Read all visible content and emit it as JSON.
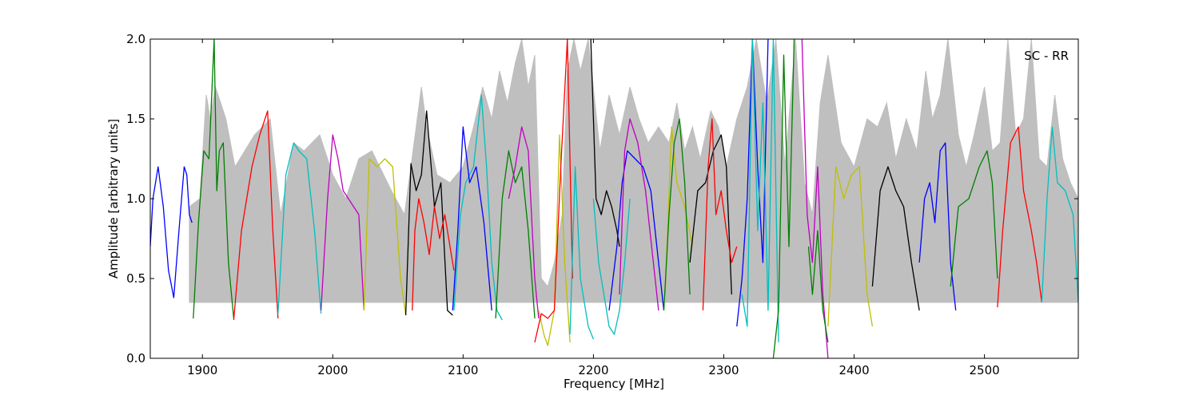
{
  "chart_data": {
    "type": "line",
    "title": "",
    "annotation": "SC - RR",
    "xlabel": "Frequency [MHz]",
    "ylabel": "Amplitude [arbitrary units]",
    "xlim": [
      1860,
      2572
    ],
    "ylim": [
      0.0,
      2.0
    ],
    "xticks": [
      1900,
      2000,
      2100,
      2200,
      2300,
      2400,
      2500
    ],
    "yticks": [
      0.0,
      0.5,
      1.0,
      1.5,
      2.0
    ],
    "xtick_labels": [
      "1900",
      "2000",
      "2100",
      "2200",
      "2300",
      "2400",
      "2500"
    ],
    "ytick_labels": [
      "0.0",
      "0.5",
      "1.0",
      "1.5",
      "2.0"
    ],
    "grid": false,
    "colors": {
      "envelope": "#bfbfbf",
      "blue": "#0000ff",
      "green": "#007f00",
      "red": "#ff0000",
      "cyan": "#00bfbf",
      "magenta": "#bf00bf",
      "yellow": "#bfbf00",
      "black": "#000000"
    },
    "envelope": {
      "x": [
        1890,
        1898,
        1903,
        1906,
        1910,
        1914,
        1918,
        1925,
        1940,
        1952,
        1960,
        1970,
        1978,
        1990,
        2000,
        2010,
        2020,
        2030,
        2045,
        2055,
        2060,
        2068,
        2072,
        2080,
        2090,
        2100,
        2108,
        2115,
        2122,
        2128,
        2134,
        2140,
        2145,
        2150,
        2155,
        2160,
        2165,
        2170,
        2176,
        2180,
        2185,
        2190,
        2196,
        2205,
        2212,
        2220,
        2228,
        2235,
        2242,
        2250,
        2258,
        2264,
        2270,
        2276,
        2282,
        2290,
        2296,
        2302,
        2310,
        2318,
        2325,
        2333,
        2340,
        2347,
        2355,
        2362,
        2368,
        2374,
        2380,
        2390,
        2400,
        2410,
        2418,
        2425,
        2432,
        2440,
        2448,
        2455,
        2460,
        2466,
        2472,
        2480,
        2486,
        2492,
        2500,
        2506,
        2512,
        2518,
        2524,
        2530,
        2536,
        2542,
        2548,
        2554,
        2560,
        2566,
        2572
      ],
      "y": [
        0.95,
        1.0,
        1.65,
        1.5,
        1.7,
        1.6,
        1.5,
        1.2,
        1.4,
        1.5,
        0.9,
        1.35,
        1.3,
        1.4,
        1.15,
        1.0,
        1.25,
        1.3,
        1.05,
        0.9,
        1.2,
        1.7,
        1.45,
        1.15,
        1.1,
        1.2,
        1.45,
        1.7,
        1.5,
        1.8,
        1.6,
        1.85,
        2.0,
        1.7,
        1.9,
        0.5,
        0.45,
        0.6,
        0.9,
        1.8,
        2.0,
        1.8,
        2.0,
        1.3,
        1.65,
        1.4,
        1.7,
        1.5,
        1.35,
        1.45,
        1.35,
        1.6,
        1.3,
        1.45,
        1.25,
        1.55,
        1.45,
        1.2,
        1.5,
        1.7,
        2.0,
        1.6,
        2.0,
        1.2,
        2.0,
        1.1,
        0.9,
        1.6,
        1.9,
        1.35,
        1.2,
        1.5,
        1.45,
        1.6,
        1.25,
        1.5,
        1.3,
        1.8,
        1.5,
        1.65,
        2.0,
        1.4,
        1.2,
        1.4,
        1.7,
        1.3,
        1.35,
        2.0,
        1.4,
        1.5,
        2.0,
        1.25,
        1.2,
        1.65,
        1.25,
        1.1,
        1.0
      ]
    },
    "series": [
      {
        "color": "blue",
        "x": [
          1860,
          1862,
          1866,
          1870,
          1874,
          1878,
          1882,
          1886,
          1888,
          1890,
          1892
        ],
        "y": [
          0.7,
          1.0,
          1.2,
          0.95,
          0.55,
          0.38,
          0.8,
          1.2,
          1.15,
          0.9,
          0.85
        ]
      },
      {
        "color": "green",
        "x": [
          1893,
          1897,
          1901,
          1905,
          1909,
          1911,
          1913,
          1916,
          1920,
          1924
        ],
        "y": [
          0.25,
          0.85,
          1.3,
          1.25,
          2.0,
          1.05,
          1.3,
          1.35,
          0.6,
          0.25
        ]
      },
      {
        "color": "red",
        "x": [
          1924,
          1930,
          1938,
          1944,
          1950,
          1954,
          1958
        ],
        "y": [
          0.24,
          0.8,
          1.2,
          1.4,
          1.55,
          0.8,
          0.25
        ]
      },
      {
        "color": "cyan",
        "x": [
          1958,
          1964,
          1970,
          1974,
          1980,
          1986,
          1991
        ],
        "y": [
          0.28,
          1.15,
          1.35,
          1.3,
          1.25,
          0.8,
          0.28
        ]
      },
      {
        "color": "magenta",
        "x": [
          1991,
          1996,
          2000,
          2004,
          2008,
          2012,
          2016,
          2020,
          2024
        ],
        "y": [
          0.3,
          1.0,
          1.4,
          1.25,
          1.05,
          1.0,
          0.95,
          0.9,
          0.3
        ]
      },
      {
        "color": "yellow",
        "x": [
          2024,
          2028,
          2034,
          2040,
          2046,
          2052,
          2056
        ],
        "y": [
          0.3,
          1.25,
          1.2,
          1.25,
          1.2,
          0.5,
          0.27
        ]
      },
      {
        "color": "black",
        "x": [
          2056,
          2060,
          2064,
          2068,
          2072,
          2078,
          2083,
          2088,
          2092
        ],
        "y": [
          0.27,
          1.22,
          1.05,
          1.15,
          1.55,
          0.95,
          1.1,
          0.3,
          0.27
        ]
      },
      {
        "color": "red",
        "x": [
          2061,
          2063,
          2066,
          2070,
          2074,
          2078,
          2082,
          2086,
          2090,
          2093
        ],
        "y": [
          0.3,
          0.8,
          1.0,
          0.85,
          0.65,
          0.95,
          0.75,
          0.9,
          0.7,
          0.55
        ]
      },
      {
        "color": "cyan",
        "x": [
          2093,
          2098,
          2102,
          2108,
          2114,
          2118,
          2122,
          2126,
          2130
        ],
        "y": [
          0.3,
          0.9,
          1.1,
          1.2,
          1.65,
          1.2,
          0.6,
          0.3,
          0.24
        ]
      },
      {
        "color": "blue",
        "x": [
          2092,
          2096,
          2100,
          2105,
          2110,
          2116,
          2122
        ],
        "y": [
          0.3,
          0.8,
          1.45,
          1.1,
          1.2,
          0.85,
          0.3
        ]
      },
      {
        "color": "green",
        "x": [
          2125,
          2130,
          2135,
          2140,
          2145,
          2150,
          2155
        ],
        "y": [
          0.25,
          1.0,
          1.3,
          1.1,
          1.2,
          0.8,
          0.25
        ]
      },
      {
        "color": "magenta",
        "x": [
          2135,
          2140,
          2145,
          2150,
          2155,
          2158
        ],
        "y": [
          1.0,
          1.2,
          1.45,
          1.3,
          0.5,
          0.25
        ]
      },
      {
        "color": "yellow",
        "x": [
          2158,
          2162,
          2165,
          2170,
          2174,
          2178,
          2182
        ],
        "y": [
          0.3,
          0.15,
          0.08,
          0.3,
          1.4,
          0.6,
          0.1
        ]
      },
      {
        "color": "red",
        "x": [
          2155,
          2160,
          2165,
          2170,
          2175,
          2180,
          2184
        ],
        "y": [
          0.1,
          0.28,
          0.25,
          0.3,
          1.2,
          2.0,
          0.5
        ]
      },
      {
        "color": "cyan",
        "x": [
          2182,
          2186,
          2190,
          2196,
          2200
        ],
        "y": [
          0.15,
          1.2,
          0.5,
          0.2,
          0.12
        ]
      },
      {
        "color": "black",
        "x": [
          2198,
          2202,
          2206,
          2210,
          2214,
          2218,
          2220
        ],
        "y": [
          2.0,
          1.0,
          0.9,
          1.05,
          0.95,
          0.8,
          0.7
        ]
      },
      {
        "color": "cyan",
        "x": [
          2200,
          2204,
          2208,
          2212,
          2216,
          2220,
          2224,
          2228
        ],
        "y": [
          1.0,
          0.6,
          0.4,
          0.2,
          0.15,
          0.3,
          0.6,
          1.0
        ]
      },
      {
        "color": "blue",
        "x": [
          2212,
          2218,
          2222,
          2226,
          2232,
          2238,
          2244,
          2250,
          2254
        ],
        "y": [
          0.3,
          0.7,
          1.1,
          1.3,
          1.25,
          1.2,
          1.05,
          0.6,
          0.3
        ]
      },
      {
        "color": "magenta",
        "x": [
          2220,
          2224,
          2228,
          2234,
          2240,
          2246,
          2250
        ],
        "y": [
          0.4,
          1.3,
          1.5,
          1.35,
          1.05,
          0.6,
          0.3
        ]
      },
      {
        "color": "yellow",
        "x": [
          2255,
          2260,
          2264,
          2270,
          2276
        ],
        "y": [
          0.4,
          1.45,
          1.1,
          0.95,
          0.7
        ]
      },
      {
        "color": "green",
        "x": [
          2254,
          2258,
          2262,
          2266,
          2270,
          2274
        ],
        "y": [
          0.3,
          0.9,
          1.35,
          1.5,
          1.1,
          0.4
        ]
      },
      {
        "color": "black",
        "x": [
          2274,
          2280,
          2286,
          2292,
          2298,
          2302,
          2306
        ],
        "y": [
          0.6,
          1.05,
          1.1,
          1.3,
          1.4,
          1.2,
          0.4
        ]
      },
      {
        "color": "red",
        "x": [
          2284,
          2288,
          2291,
          2294,
          2298,
          2302,
          2306,
          2310
        ],
        "y": [
          0.3,
          1.2,
          1.5,
          0.9,
          1.05,
          0.8,
          0.6,
          0.7
        ]
      },
      {
        "color": "blue",
        "x": [
          2310,
          2314,
          2318,
          2322,
          2326,
          2330,
          2334
        ],
        "y": [
          0.2,
          0.5,
          1.0,
          2.0,
          1.2,
          0.6,
          2.0
        ]
      },
      {
        "color": "cyan",
        "x": [
          2314,
          2318,
          2322,
          2326,
          2330,
          2334,
          2338,
          2342
        ],
        "y": [
          0.4,
          0.2,
          2.0,
          0.8,
          1.6,
          0.3,
          2.0,
          0.1
        ]
      },
      {
        "color": "green",
        "x": [
          2338,
          2342,
          2346,
          2350,
          2354
        ],
        "y": [
          0.0,
          0.3,
          1.9,
          0.7,
          2.0
        ]
      },
      {
        "color": "magenta",
        "x": [
          2360,
          2364,
          2368,
          2372,
          2376,
          2380
        ],
        "y": [
          2.0,
          0.9,
          0.6,
          1.2,
          0.4,
          0.0
        ]
      },
      {
        "color": "green",
        "x": [
          2365,
          2368,
          2372,
          2376,
          2380
        ],
        "y": [
          0.7,
          0.4,
          0.8,
          0.3,
          0.1
        ]
      },
      {
        "color": "yellow",
        "x": [
          2380,
          2386,
          2392,
          2398,
          2404,
          2410,
          2414
        ],
        "y": [
          0.2,
          1.2,
          1.0,
          1.15,
          1.2,
          0.4,
          0.2
        ]
      },
      {
        "color": "black",
        "x": [
          2414,
          2420,
          2426,
          2432,
          2438,
          2444,
          2450
        ],
        "y": [
          0.45,
          1.05,
          1.2,
          1.05,
          0.95,
          0.6,
          0.3
        ]
      },
      {
        "color": "blue",
        "x": [
          2450,
          2454,
          2458,
          2462,
          2466,
          2470,
          2474,
          2478
        ],
        "y": [
          0.6,
          1.0,
          1.1,
          0.85,
          1.3,
          1.35,
          0.6,
          0.3
        ]
      },
      {
        "color": "green",
        "x": [
          2474,
          2480,
          2488,
          2496,
          2502,
          2506,
          2510
        ],
        "y": [
          0.45,
          0.95,
          1.0,
          1.2,
          1.3,
          1.1,
          0.5
        ]
      },
      {
        "color": "red",
        "x": [
          2510,
          2514,
          2520,
          2526,
          2530,
          2536,
          2540,
          2544
        ],
        "y": [
          0.32,
          0.8,
          1.35,
          1.45,
          1.05,
          0.8,
          0.6,
          0.35
        ]
      },
      {
        "color": "cyan",
        "x": [
          2544,
          2548,
          2552,
          2556,
          2562,
          2568,
          2572
        ],
        "y": [
          0.35,
          1.0,
          1.45,
          1.1,
          1.05,
          0.9,
          0.35
        ]
      }
    ]
  }
}
